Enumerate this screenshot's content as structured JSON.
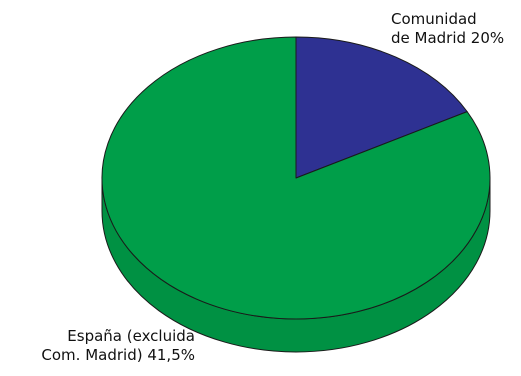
{
  "chart_data": {
    "type": "pie",
    "style": "3d",
    "slices": [
      {
        "label_lines": [
          "Comunidad",
          "de Madrid 20%"
        ],
        "value": 20,
        "color": "#2e3192"
      },
      {
        "label_lines": [
          "España (excluida",
          "Com. Madrid) 41,5%"
        ],
        "value": 41.5,
        "color": "#009e49"
      }
    ]
  }
}
